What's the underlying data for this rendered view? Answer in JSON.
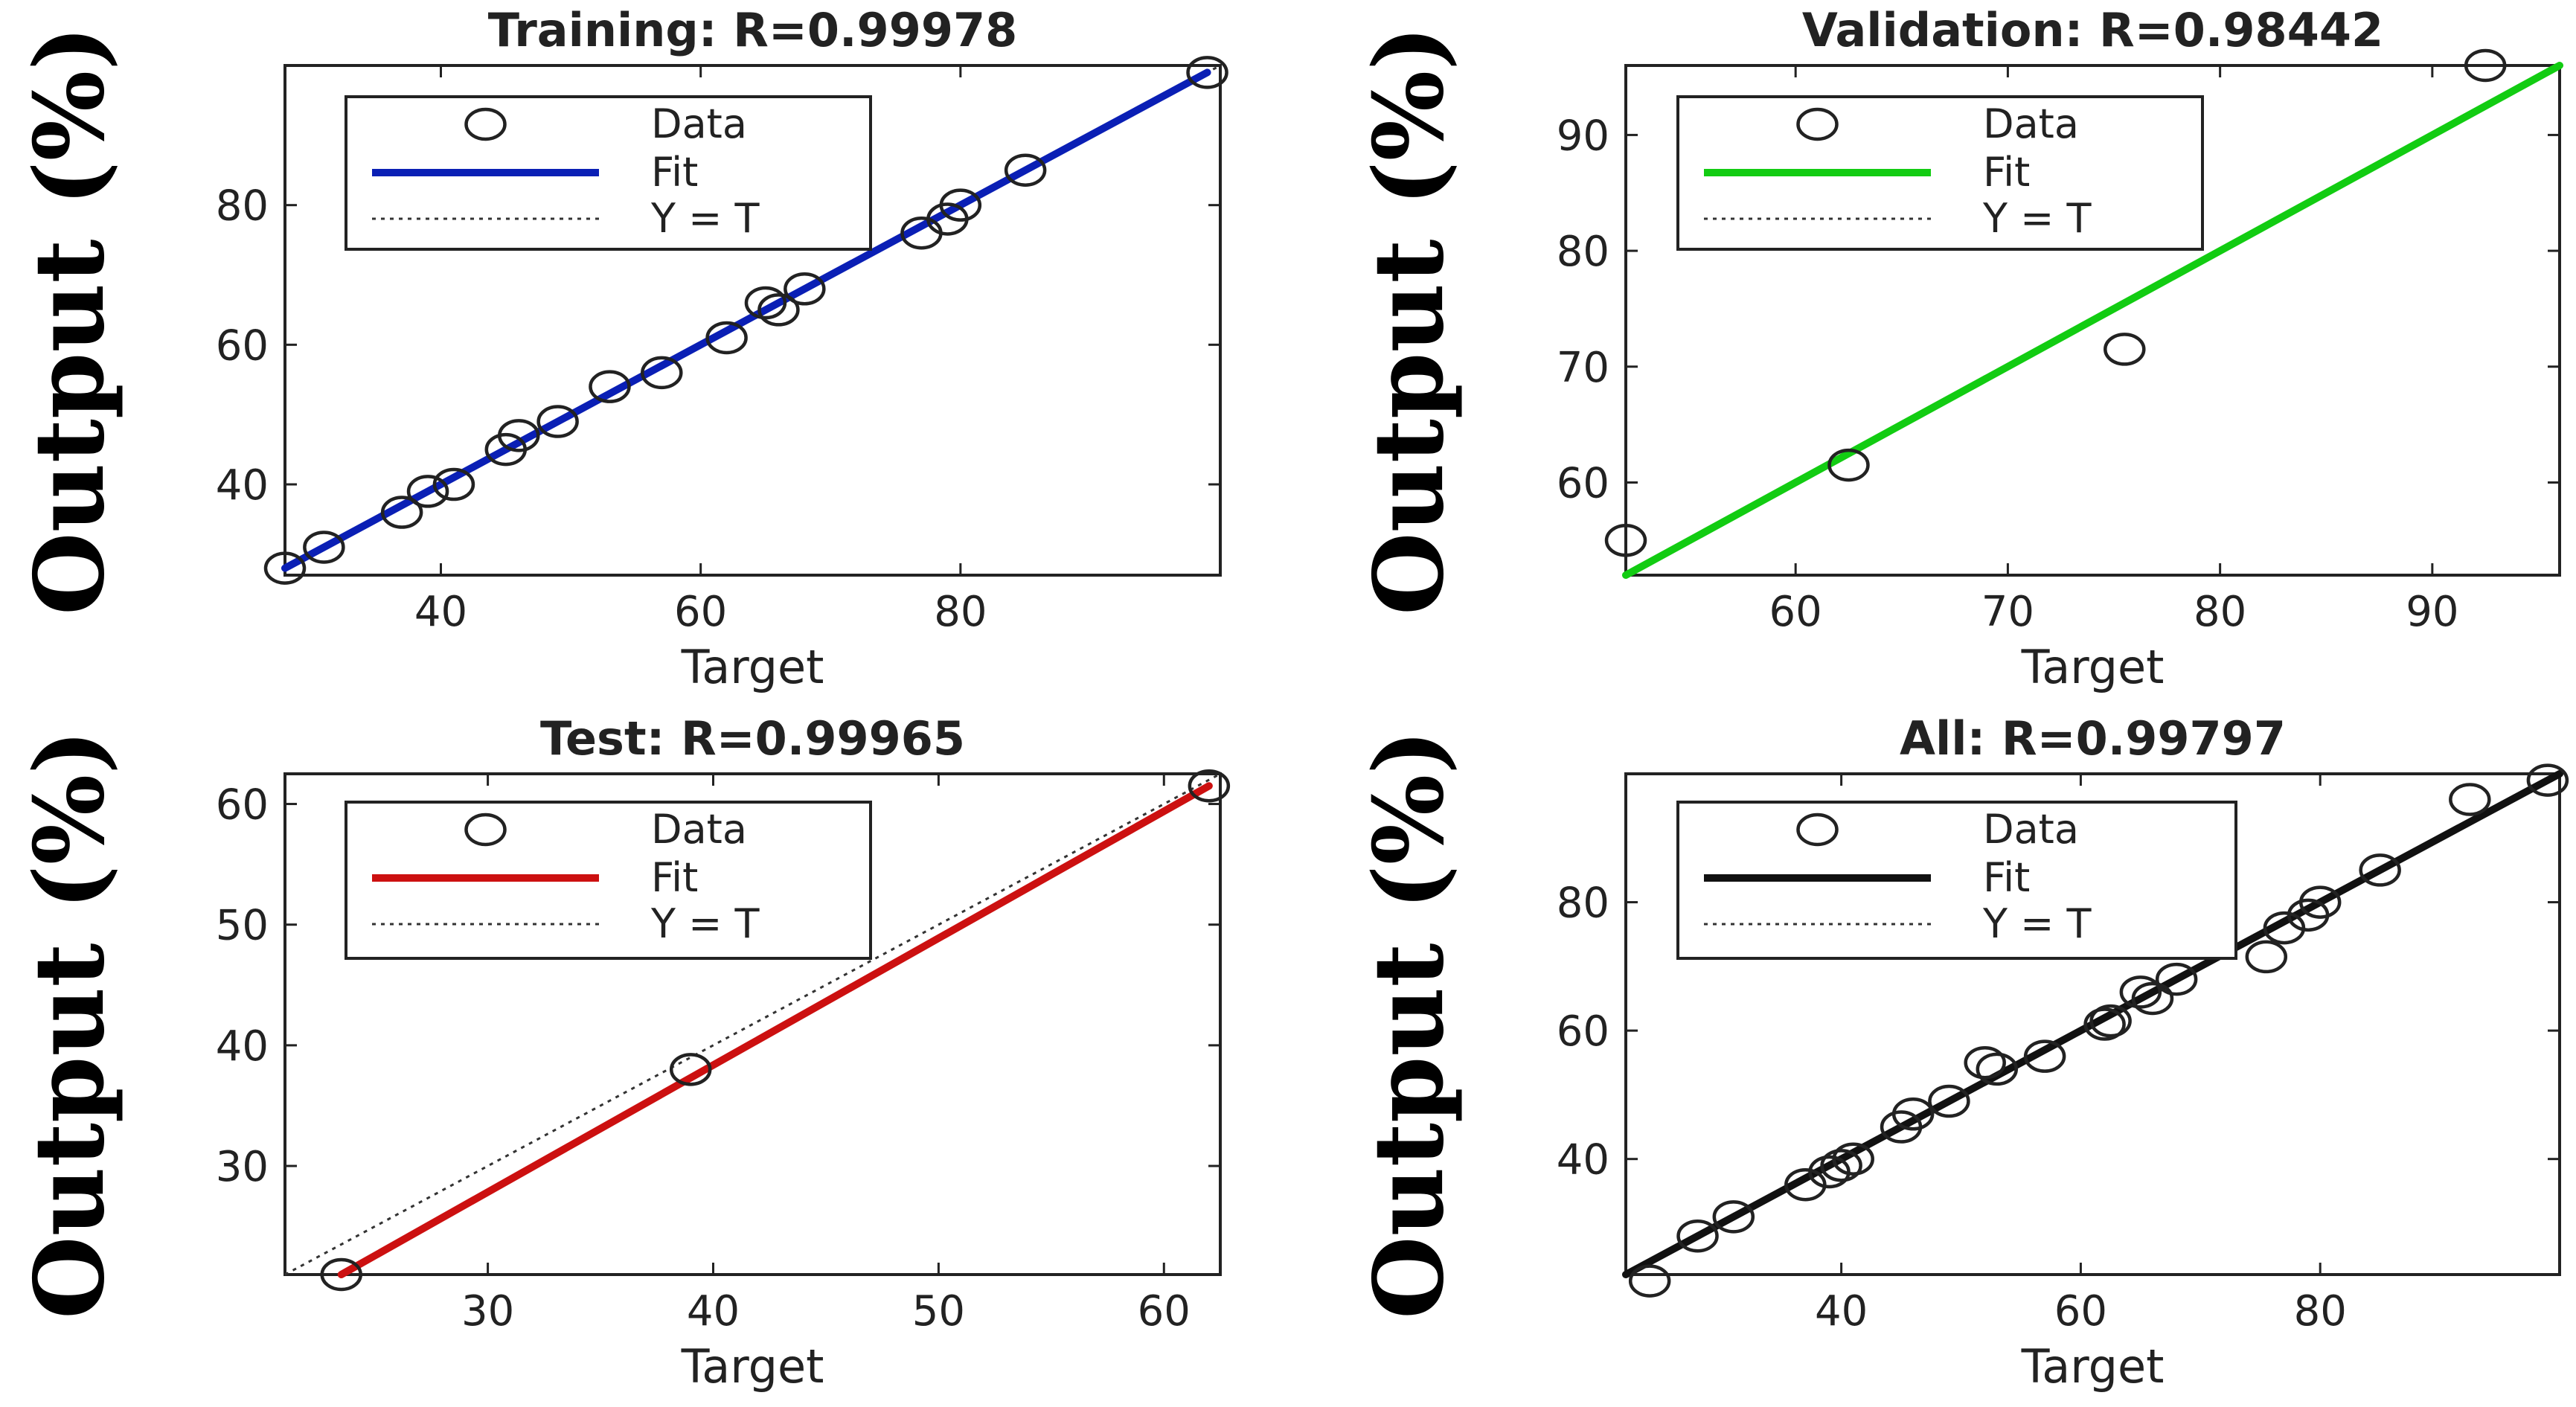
{
  "chart_data": [
    {
      "type": "scatter",
      "title": "Training: R=0.99978",
      "xlabel": "Target",
      "ylabel": "Output (%)",
      "xlim": [
        28,
        100
      ],
      "ylim": [
        27,
        100
      ],
      "xticks": [
        40,
        60,
        80
      ],
      "yticks": [
        40,
        60,
        80
      ],
      "fit_color": "#0a1fb5",
      "fit": [
        [
          28,
          28
        ],
        [
          99,
          99
        ]
      ],
      "x": [
        28,
        31,
        37,
        39,
        41,
        45,
        46,
        49,
        53,
        57,
        62,
        65,
        66,
        68,
        77,
        79,
        80,
        85,
        99
      ],
      "y": [
        28,
        31,
        36,
        39,
        40,
        45,
        47,
        49,
        54,
        56,
        61,
        66,
        65,
        68,
        76,
        78,
        80,
        85,
        99
      ],
      "legend": [
        "Data",
        "Fit",
        "Y = T"
      ]
    },
    {
      "type": "scatter",
      "title": "Validation: R=0.98442",
      "xlabel": "Target",
      "ylabel": "Output (%)",
      "xlim": [
        52,
        96
      ],
      "ylim": [
        52,
        96
      ],
      "xticks": [
        60,
        70,
        80,
        90
      ],
      "yticks": [
        60,
        70,
        80,
        90
      ],
      "fit_color": "#12cc12",
      "fit": [
        [
          52,
          52
        ],
        [
          96,
          96
        ]
      ],
      "x": [
        52,
        62.5,
        75.5,
        92.5
      ],
      "y": [
        55,
        61.5,
        71.5,
        96
      ],
      "legend": [
        "Data",
        "Fit",
        "Y = T"
      ]
    },
    {
      "type": "scatter",
      "title": "Test: R=0.99965",
      "xlabel": "Target",
      "ylabel": "Output (%)",
      "xlim": [
        21,
        62.5
      ],
      "ylim": [
        21,
        62.5
      ],
      "xticks": [
        30,
        40,
        50,
        60
      ],
      "yticks": [
        30,
        40,
        50,
        60
      ],
      "fit_color": "#cc1010",
      "fit": [
        [
          23.5,
          21
        ],
        [
          62,
          61.5
        ]
      ],
      "x": [
        23.5,
        39,
        62
      ],
      "y": [
        21,
        38,
        61.5
      ],
      "legend": [
        "Data",
        "Fit",
        "Y = T"
      ]
    },
    {
      "type": "scatter",
      "title": "All: R=0.99797",
      "xlabel": "Target",
      "ylabel": "Output (%)",
      "xlim": [
        22,
        100
      ],
      "ylim": [
        22,
        100
      ],
      "xticks": [
        40,
        60,
        80
      ],
      "yticks": [
        40,
        60,
        80
      ],
      "fit_color": "#111111",
      "fit": [
        [
          22,
          22
        ],
        [
          100,
          100
        ]
      ],
      "x": [
        24,
        28,
        31,
        37,
        39,
        40,
        41,
        45,
        46,
        49,
        52,
        53,
        57,
        62,
        62.5,
        65,
        66,
        68,
        75.5,
        77,
        79,
        80,
        85,
        92.5,
        99
      ],
      "y": [
        21,
        28,
        31,
        36,
        38,
        39,
        40,
        45,
        47,
        49,
        55,
        54,
        56,
        61,
        61.5,
        66,
        65,
        68,
        71.5,
        76,
        78,
        80,
        85,
        96,
        99
      ],
      "legend": [
        "Data",
        "Fit",
        "Y = T"
      ]
    }
  ]
}
